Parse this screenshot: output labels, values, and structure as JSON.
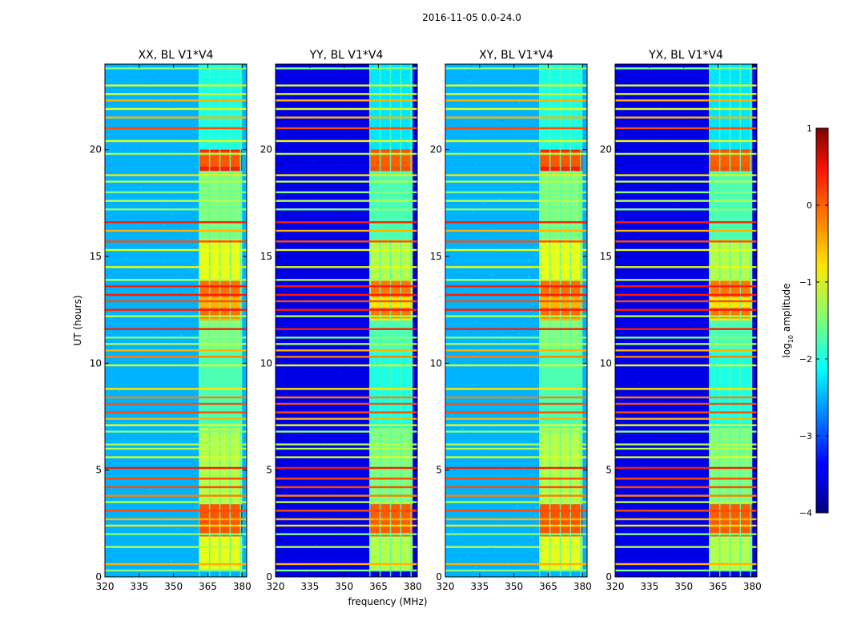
{
  "chart_data": {
    "type": "heatmap",
    "suptitle": "2016-11-05 0.0-24.0",
    "xlabel": "frequency (MHz)",
    "ylabel": "UT (hours)",
    "xlim": [
      320,
      382
    ],
    "ylim": [
      0,
      24
    ],
    "xticks": [
      320,
      335,
      350,
      365,
      380
    ],
    "yticks": [
      0,
      5,
      10,
      15,
      20
    ],
    "colorbar": {
      "label_main": "log",
      "label_sub": "10",
      "label_rest": " amplitude",
      "range": [
        -4,
        1
      ],
      "ticks": [
        1,
        0,
        -1,
        -2,
        -3,
        -4
      ],
      "tick_labels": [
        "1",
        "0",
        "−1",
        "−2",
        "−3",
        "−4"
      ],
      "colormap": "jet"
    },
    "rfi_band_mhz": [
      361,
      380
    ],
    "rfi_channel_edges_mhz": [
      361,
      365.5,
      370,
      374.5,
      379
    ],
    "panels": [
      {
        "title": "XX, BL V1*V4",
        "background_level": 0.3
      },
      {
        "title": "YY, BL V1*V4",
        "background_level": 0.1
      },
      {
        "title": "XY, BL V1*V4",
        "background_level": 0.3
      },
      {
        "title": "YX, BL V1*V4",
        "background_level": 0.1
      }
    ],
    "strong_rfi_hours": [
      {
        "t0": 19.2,
        "t1": 19.9
      },
      {
        "t0": 13.1,
        "t1": 13.9
      },
      {
        "t0": 12.1,
        "t1": 12.6
      },
      {
        "t0": 1.9,
        "t1": 3.4
      }
    ],
    "horizontal_lines": [
      {
        "t": 23.8,
        "level": 0.5
      },
      {
        "t": 23.0,
        "level": 0.6
      },
      {
        "t": 22.6,
        "level": 0.6
      },
      {
        "t": 22.3,
        "level": 0.7
      },
      {
        "t": 21.9,
        "level": 0.6
      },
      {
        "t": 21.5,
        "level": 0.7
      },
      {
        "t": 21.0,
        "level": 0.8
      },
      {
        "t": 20.4,
        "level": 0.6
      },
      {
        "t": 19.8,
        "level": 0.55
      },
      {
        "t": 18.8,
        "level": 0.65
      },
      {
        "t": 18.5,
        "level": 0.55
      },
      {
        "t": 18.0,
        "level": 0.5
      },
      {
        "t": 17.6,
        "level": 0.55
      },
      {
        "t": 17.2,
        "level": 0.5
      },
      {
        "t": 16.6,
        "level": 0.85
      },
      {
        "t": 16.2,
        "level": 0.7
      },
      {
        "t": 15.7,
        "level": 0.8
      },
      {
        "t": 15.3,
        "level": 0.6
      },
      {
        "t": 14.5,
        "level": 0.6
      },
      {
        "t": 13.9,
        "level": 0.55
      },
      {
        "t": 13.6,
        "level": 0.85
      },
      {
        "t": 13.2,
        "level": 0.85
      },
      {
        "t": 12.9,
        "level": 0.8
      },
      {
        "t": 12.5,
        "level": 0.85
      },
      {
        "t": 12.2,
        "level": 0.55
      },
      {
        "t": 11.6,
        "level": 0.85
      },
      {
        "t": 11.2,
        "level": 0.5
      },
      {
        "t": 10.9,
        "level": 0.55
      },
      {
        "t": 10.6,
        "level": 0.7
      },
      {
        "t": 10.3,
        "level": 0.75
      },
      {
        "t": 9.9,
        "level": 0.6
      },
      {
        "t": 8.8,
        "level": 0.65
      },
      {
        "t": 8.4,
        "level": 0.75
      },
      {
        "t": 8.1,
        "level": 0.8
      },
      {
        "t": 7.7,
        "level": 0.8
      },
      {
        "t": 7.4,
        "level": 0.7
      },
      {
        "t": 7.1,
        "level": 0.6
      },
      {
        "t": 6.8,
        "level": 0.5
      },
      {
        "t": 6.2,
        "level": 0.55
      },
      {
        "t": 6.0,
        "level": 0.55
      },
      {
        "t": 5.6,
        "level": 0.6
      },
      {
        "t": 5.1,
        "level": 0.85
      },
      {
        "t": 4.6,
        "level": 0.8
      },
      {
        "t": 4.2,
        "level": 0.8
      },
      {
        "t": 3.8,
        "level": 0.75
      },
      {
        "t": 3.5,
        "level": 0.55
      },
      {
        "t": 3.1,
        "level": 0.8
      },
      {
        "t": 2.7,
        "level": 0.7
      },
      {
        "t": 2.4,
        "level": 0.65
      },
      {
        "t": 2.0,
        "level": 0.5
      },
      {
        "t": 1.4,
        "level": 0.55
      },
      {
        "t": 0.6,
        "level": 0.7
      },
      {
        "t": 0.3,
        "level": 0.5
      }
    ],
    "band_activity": [
      {
        "t0": 0.3,
        "t1": 1.9,
        "level": 0.6
      },
      {
        "t0": 1.9,
        "t1": 3.4,
        "level": 0.88
      },
      {
        "t0": 3.4,
        "t1": 7.0,
        "level": 0.55
      },
      {
        "t0": 7.0,
        "t1": 10.5,
        "level": 0.45
      },
      {
        "t0": 10.5,
        "t1": 12.0,
        "level": 0.5
      },
      {
        "t0": 12.0,
        "t1": 13.9,
        "level": 0.7
      },
      {
        "t0": 13.9,
        "t1": 15.8,
        "level": 0.6
      },
      {
        "t0": 15.8,
        "t1": 19.0,
        "level": 0.5
      },
      {
        "t0": 19.0,
        "t1": 20.0,
        "level": 0.85
      },
      {
        "t0": 20.0,
        "t1": 24.0,
        "level": 0.4
      }
    ]
  }
}
